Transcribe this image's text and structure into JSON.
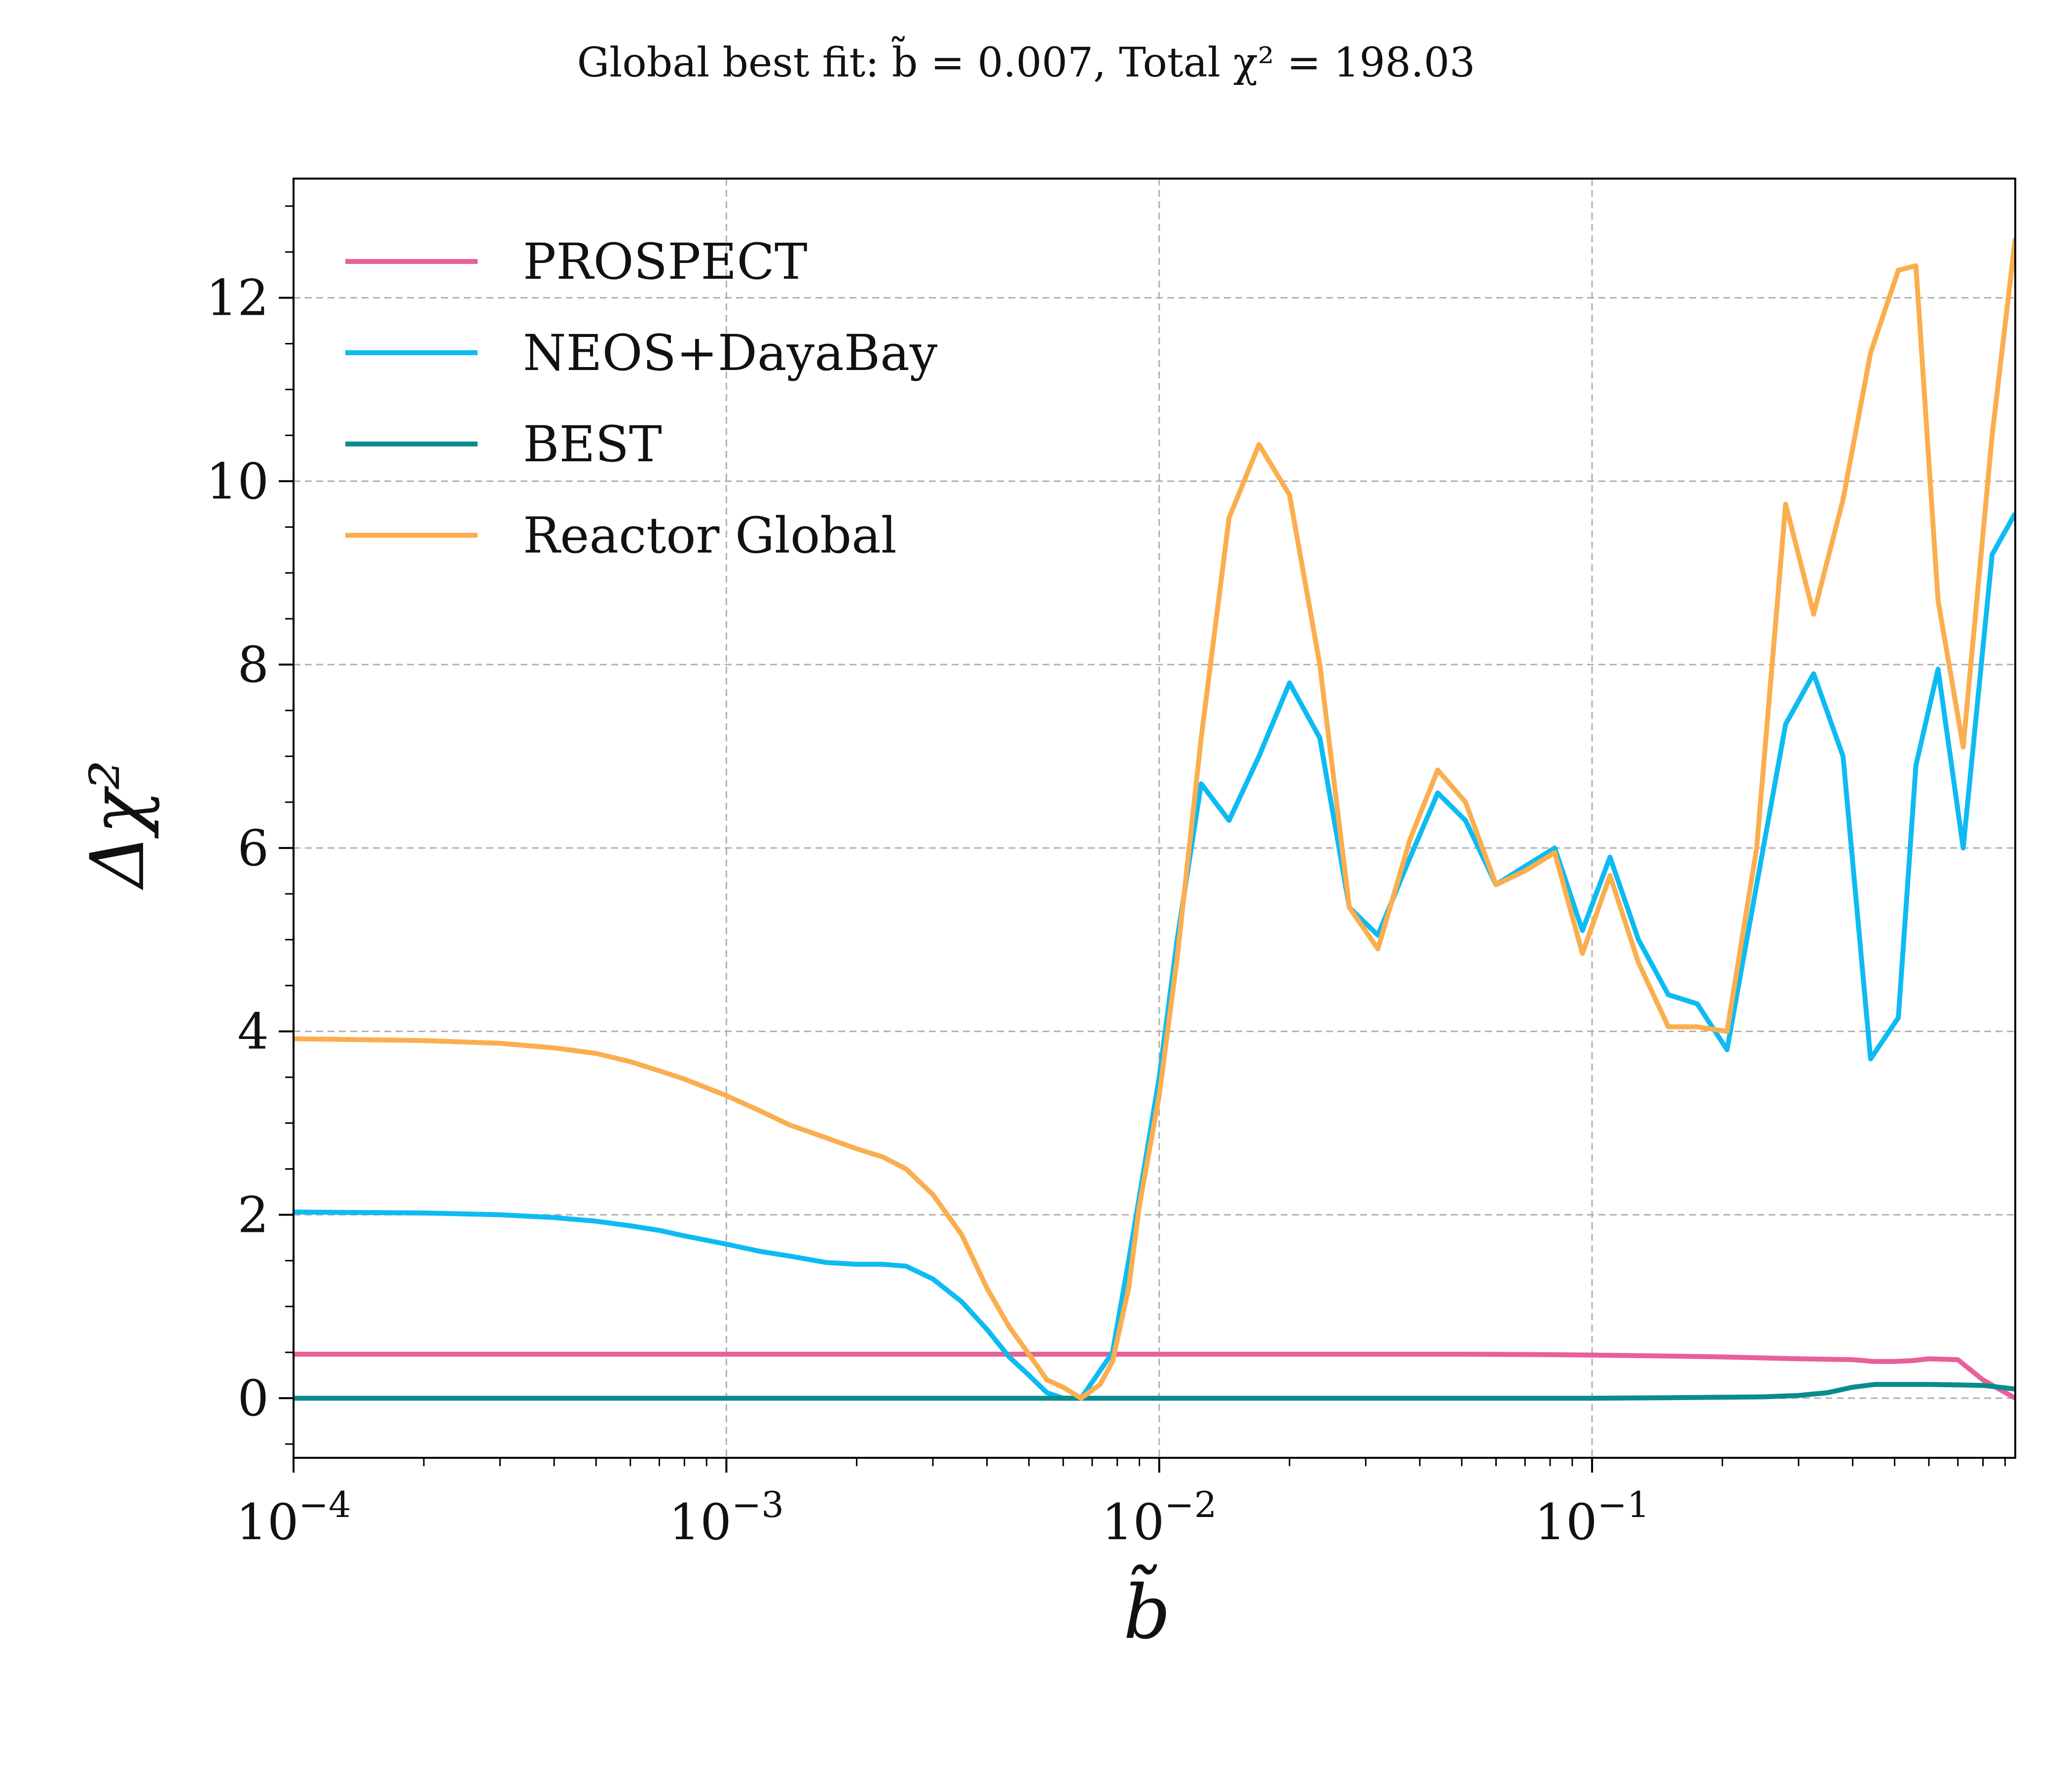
{
  "chart_data": {
    "type": "line",
    "title": "Global best fit: b̃ = 0.007, Total χ² = 198.03",
    "xlabel": "b̃",
    "ylabel": "Δχ²",
    "xscale": "log",
    "xlim": [
      0.0001,
      0.95
    ],
    "ylim": [
      -0.65,
      13.3
    ],
    "grid": true,
    "legend_position": "top-left",
    "x_ticks": [
      {
        "value": 0.0001,
        "base": "10",
        "exp": "−4"
      },
      {
        "value": 0.001,
        "base": "10",
        "exp": "−3"
      },
      {
        "value": 0.01,
        "base": "10",
        "exp": "−2"
      },
      {
        "value": 0.1,
        "base": "10",
        "exp": "−1"
      }
    ],
    "y_ticks": [
      {
        "value": 0,
        "label": "0"
      },
      {
        "value": 2,
        "label": "2"
      },
      {
        "value": 4,
        "label": "4"
      },
      {
        "value": 6,
        "label": "6"
      },
      {
        "value": 8,
        "label": "8"
      },
      {
        "value": 10,
        "label": "10"
      },
      {
        "value": 12,
        "label": "12"
      }
    ],
    "series": [
      {
        "name": "PROSPECT",
        "color": "#E8609A",
        "points": [
          [
            0.0001,
            0.48
          ],
          [
            0.001,
            0.48
          ],
          [
            0.01,
            0.48
          ],
          [
            0.05,
            0.48
          ],
          [
            0.08,
            0.475
          ],
          [
            0.1,
            0.47
          ],
          [
            0.15,
            0.46
          ],
          [
            0.2,
            0.45
          ],
          [
            0.3,
            0.43
          ],
          [
            0.4,
            0.42
          ],
          [
            0.45,
            0.4
          ],
          [
            0.5,
            0.4
          ],
          [
            0.55,
            0.41
          ],
          [
            0.6,
            0.43
          ],
          [
            0.7,
            0.42
          ],
          [
            0.8,
            0.2
          ],
          [
            0.95,
            0.0
          ]
        ]
      },
      {
        "name": "NEOS+DayaBay",
        "color": "#0DBBF2",
        "points": [
          [
            0.0001,
            2.03
          ],
          [
            0.0002,
            2.02
          ],
          [
            0.0003,
            2.0
          ],
          [
            0.0004,
            1.97
          ],
          [
            0.0005,
            1.93
          ],
          [
            0.0006,
            1.88
          ],
          [
            0.0007,
            1.83
          ],
          [
            0.0008,
            1.77
          ],
          [
            0.001,
            1.68
          ],
          [
            0.0012,
            1.6
          ],
          [
            0.0014,
            1.55
          ],
          [
            0.0017,
            1.48
          ],
          [
            0.002,
            1.46
          ],
          [
            0.0023,
            1.46
          ],
          [
            0.0026,
            1.44
          ],
          [
            0.003,
            1.3
          ],
          [
            0.0035,
            1.05
          ],
          [
            0.004,
            0.75
          ],
          [
            0.0045,
            0.45
          ],
          [
            0.005,
            0.25
          ],
          [
            0.0055,
            0.06
          ],
          [
            0.006,
            0.0
          ],
          [
            0.0066,
            0.0
          ],
          [
            0.0073,
            0.3
          ],
          [
            0.0078,
            0.5
          ],
          [
            0.0085,
            1.5
          ],
          [
            0.009,
            2.2
          ],
          [
            0.01,
            3.5
          ],
          [
            0.011,
            5.0
          ],
          [
            0.0125,
            6.7
          ],
          [
            0.0145,
            6.3
          ],
          [
            0.017,
            7.0
          ],
          [
            0.02,
            7.8
          ],
          [
            0.0235,
            7.2
          ],
          [
            0.0275,
            5.35
          ],
          [
            0.032,
            5.05
          ],
          [
            0.038,
            5.9
          ],
          [
            0.044,
            6.6
          ],
          [
            0.051,
            6.3
          ],
          [
            0.06,
            5.6
          ],
          [
            0.07,
            5.8
          ],
          [
            0.082,
            6.0
          ],
          [
            0.095,
            5.1
          ],
          [
            0.11,
            5.9
          ],
          [
            0.128,
            5.0
          ],
          [
            0.15,
            4.4
          ],
          [
            0.175,
            4.3
          ],
          [
            0.205,
            3.8
          ],
          [
            0.24,
            5.6
          ],
          [
            0.28,
            7.35
          ],
          [
            0.325,
            7.9
          ],
          [
            0.38,
            7.0
          ],
          [
            0.44,
            3.7
          ],
          [
            0.51,
            4.15
          ],
          [
            0.56,
            6.9
          ],
          [
            0.63,
            7.95
          ],
          [
            0.72,
            6.0
          ],
          [
            0.84,
            9.2
          ],
          [
            0.95,
            9.65
          ]
        ]
      },
      {
        "name": "BEST",
        "color": "#0A8C8C",
        "points": [
          [
            0.0001,
            0.0
          ],
          [
            0.001,
            0.0
          ],
          [
            0.01,
            0.0
          ],
          [
            0.1,
            0.0
          ],
          [
            0.15,
            0.005
          ],
          [
            0.2,
            0.01
          ],
          [
            0.25,
            0.015
          ],
          [
            0.3,
            0.03
          ],
          [
            0.35,
            0.06
          ],
          [
            0.4,
            0.12
          ],
          [
            0.45,
            0.15
          ],
          [
            0.5,
            0.15
          ],
          [
            0.6,
            0.15
          ],
          [
            0.7,
            0.145
          ],
          [
            0.8,
            0.14
          ],
          [
            0.95,
            0.1
          ]
        ]
      },
      {
        "name": "Reactor Global",
        "color": "#FBAE4F",
        "points": [
          [
            0.0001,
            3.92
          ],
          [
            0.0002,
            3.9
          ],
          [
            0.0003,
            3.87
          ],
          [
            0.0004,
            3.82
          ],
          [
            0.0005,
            3.76
          ],
          [
            0.0006,
            3.67
          ],
          [
            0.0007,
            3.57
          ],
          [
            0.0008,
            3.48
          ],
          [
            0.001,
            3.3
          ],
          [
            0.0012,
            3.13
          ],
          [
            0.0014,
            2.98
          ],
          [
            0.0017,
            2.84
          ],
          [
            0.002,
            2.72
          ],
          [
            0.0023,
            2.63
          ],
          [
            0.0026,
            2.5
          ],
          [
            0.003,
            2.22
          ],
          [
            0.0035,
            1.78
          ],
          [
            0.004,
            1.2
          ],
          [
            0.0045,
            0.78
          ],
          [
            0.005,
            0.48
          ],
          [
            0.0055,
            0.2
          ],
          [
            0.006,
            0.12
          ],
          [
            0.0066,
            0.0
          ],
          [
            0.0073,
            0.15
          ],
          [
            0.0078,
            0.4
          ],
          [
            0.0085,
            1.2
          ],
          [
            0.009,
            2.1
          ],
          [
            0.01,
            3.3
          ],
          [
            0.011,
            4.8
          ],
          [
            0.0125,
            7.2
          ],
          [
            0.0145,
            9.6
          ],
          [
            0.017,
            10.4
          ],
          [
            0.02,
            9.85
          ],
          [
            0.0235,
            8.0
          ],
          [
            0.0275,
            5.35
          ],
          [
            0.032,
            4.9
          ],
          [
            0.038,
            6.1
          ],
          [
            0.044,
            6.85
          ],
          [
            0.051,
            6.5
          ],
          [
            0.06,
            5.6
          ],
          [
            0.07,
            5.75
          ],
          [
            0.082,
            5.95
          ],
          [
            0.095,
            4.85
          ],
          [
            0.11,
            5.7
          ],
          [
            0.128,
            4.75
          ],
          [
            0.15,
            4.05
          ],
          [
            0.175,
            4.05
          ],
          [
            0.205,
            4.0
          ],
          [
            0.24,
            6.0
          ],
          [
            0.28,
            9.75
          ],
          [
            0.325,
            8.55
          ],
          [
            0.38,
            9.8
          ],
          [
            0.44,
            11.4
          ],
          [
            0.51,
            12.3
          ],
          [
            0.56,
            12.35
          ],
          [
            0.63,
            8.7
          ],
          [
            0.72,
            7.1
          ],
          [
            0.84,
            10.5
          ],
          [
            0.95,
            12.65
          ]
        ]
      }
    ]
  }
}
